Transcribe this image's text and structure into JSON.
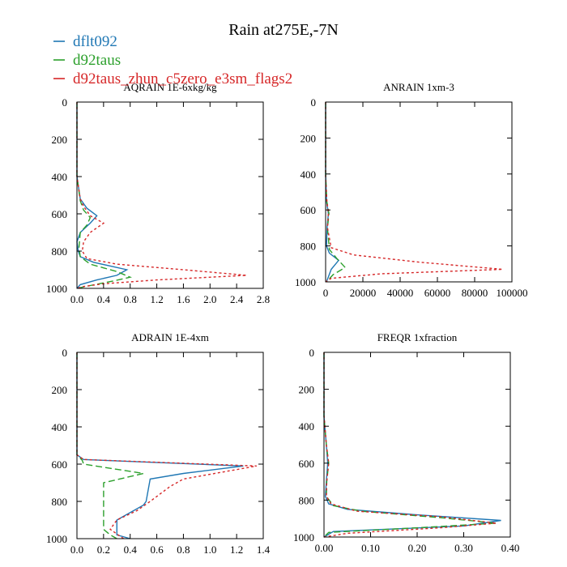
{
  "figure": {
    "title": "Rain at275E,-7N"
  },
  "colors": {
    "frame": "#000000",
    "series_1": "#1f77b4",
    "series_2": "#2ca02c",
    "series_3": "#d62728"
  },
  "chart_data": [
    {
      "type": "line",
      "title": "AQRAIN  1E-6xkg/kg",
      "xlabel": "",
      "ylabel": "",
      "xlim": [
        0,
        2.8
      ],
      "ylim": [
        1000,
        0
      ],
      "xticks": [
        0,
        0.4,
        0.8,
        1.2,
        1.6,
        2.0,
        2.4,
        2.8
      ],
      "xtick_labels": [
        "0.0",
        "0.4",
        "0.8",
        "1.2",
        "1.6",
        "2.0",
        "2.4",
        "2.8"
      ],
      "yticks": [
        0,
        200,
        400,
        600,
        800,
        1000
      ],
      "ytick_labels": [
        "0",
        "200",
        "400",
        "600",
        "800",
        "1000"
      ],
      "grid": false,
      "legend": "top-left",
      "series": [
        {
          "name": "dflt092",
          "color": "#1f77b4",
          "dash": "none",
          "x": [
            0,
            0,
            0.05,
            0.15,
            0.3,
            0.2,
            0.05,
            0,
            0.02,
            0.05,
            0.25,
            0.75,
            0.6,
            0.3,
            0.05,
            0
          ],
          "y": [
            0,
            400,
            520,
            570,
            610,
            650,
            700,
            750,
            800,
            830,
            860,
            900,
            930,
            955,
            980,
            1000
          ]
        },
        {
          "name": "d92taus",
          "color": "#2ca02c",
          "dash": "8,4",
          "x": [
            0,
            0,
            0.05,
            0.1,
            0.2,
            0.15,
            0.05,
            0.03,
            0.05,
            0.2,
            0.6,
            0.8,
            0.55,
            0.2,
            0
          ],
          "y": [
            0,
            400,
            530,
            580,
            620,
            660,
            700,
            780,
            830,
            870,
            910,
            940,
            960,
            985,
            1000
          ]
        },
        {
          "name": "d92taus_zhun_c5zero_e3sm_flags2",
          "color": "#d62728",
          "dash": "3,3",
          "x": [
            0,
            0,
            0.05,
            0.1,
            0.2,
            0.4,
            0.2,
            0.1,
            0.08,
            0.15,
            0.6,
            1.6,
            2.55,
            1.2,
            0.4,
            0.1,
            0
          ],
          "y": [
            0,
            400,
            520,
            560,
            610,
            650,
            700,
            750,
            800,
            840,
            870,
            900,
            930,
            955,
            975,
            990,
            1000
          ]
        }
      ]
    },
    {
      "type": "line",
      "title": "ANRAIN  1xm-3",
      "xlabel": "",
      "ylabel": "",
      "xlim": [
        0,
        100000
      ],
      "ylim": [
        1000,
        0
      ],
      "xticks": [
        0,
        20000,
        40000,
        60000,
        80000,
        100000
      ],
      "xtick_labels": [
        "0",
        "20000",
        "40000",
        "60000",
        "80000",
        "100000"
      ],
      "yticks": [
        0,
        200,
        400,
        600,
        800,
        1000
      ],
      "ytick_labels": [
        "0",
        "200",
        "400",
        "600",
        "800",
        "1000"
      ],
      "grid": false,
      "series": [
        {
          "name": "dflt092",
          "color": "#1f77b4",
          "dash": "none",
          "x": [
            0,
            0,
            500,
            1500,
            800,
            500,
            2000,
            7000,
            3000,
            500
          ],
          "y": [
            0,
            400,
            550,
            620,
            700,
            800,
            840,
            880,
            930,
            1000
          ]
        },
        {
          "name": "d92taus",
          "color": "#2ca02c",
          "dash": "8,4",
          "x": [
            0,
            0,
            600,
            1800,
            1000,
            2000,
            6000,
            10500,
            4000,
            500
          ],
          "y": [
            0,
            400,
            550,
            620,
            700,
            820,
            870,
            920,
            960,
            1000
          ]
        },
        {
          "name": "d92taus_zhun_c5zero_e3sm_flags2",
          "color": "#d62728",
          "dash": "3,3",
          "x": [
            0,
            0,
            700,
            1500,
            1000,
            3000,
            15000,
            50000,
            95000,
            30000,
            3000,
            0
          ],
          "y": [
            0,
            420,
            550,
            620,
            700,
            810,
            850,
            890,
            930,
            955,
            980,
            1000
          ]
        }
      ]
    },
    {
      "type": "line",
      "title": "ADRAIN  1E-4xm",
      "xlabel": "",
      "ylabel": "",
      "xlim": [
        0,
        1.4
      ],
      "ylim": [
        1000,
        0
      ],
      "xticks": [
        0,
        0.2,
        0.4,
        0.6,
        0.8,
        1.0,
        1.2,
        1.4
      ],
      "xtick_labels": [
        "0.0",
        "0.2",
        "0.4",
        "0.6",
        "0.8",
        "1.0",
        "1.2",
        "1.4"
      ],
      "yticks": [
        0,
        200,
        400,
        600,
        800,
        1000
      ],
      "ytick_labels": [
        "0",
        "200",
        "400",
        "600",
        "800",
        "1000"
      ],
      "grid": false,
      "series": [
        {
          "name": "dflt092",
          "color": "#1f77b4",
          "dash": "none",
          "x": [
            0,
            0,
            0.05,
            1.25,
            0.8,
            0.55,
            0.52,
            0.5,
            0.3,
            0.3,
            0.3,
            0.4
          ],
          "y": [
            0,
            550,
            575,
            610,
            650,
            680,
            800,
            820,
            900,
            950,
            980,
            1000
          ]
        },
        {
          "name": "d92taus",
          "color": "#2ca02c",
          "dash": "8,4",
          "x": [
            0,
            0,
            0.04,
            0.05,
            0.5,
            0.2,
            0.2,
            0.2,
            0.2,
            0.25,
            0.3
          ],
          "y": [
            0,
            550,
            580,
            600,
            650,
            700,
            800,
            900,
            950,
            980,
            1000
          ]
        },
        {
          "name": "d92taus_zhun_c5zero_e3sm_flags2",
          "color": "#d62728",
          "dash": "3,3",
          "x": [
            0,
            0,
            0.05,
            1.35,
            0.8,
            0.7,
            0.55,
            0.45,
            0.3,
            0.25,
            0.35
          ],
          "y": [
            0,
            550,
            575,
            610,
            680,
            720,
            800,
            850,
            900,
            950,
            1000
          ]
        }
      ]
    },
    {
      "type": "line",
      "title": "FREQR  1xfraction",
      "xlabel": "",
      "ylabel": "",
      "xlim": [
        0,
        0.4
      ],
      "ylim": [
        1000,
        0
      ],
      "xticks": [
        0,
        0.1,
        0.2,
        0.3,
        0.4
      ],
      "xtick_labels": [
        "0.00",
        "0.10",
        "0.20",
        "0.30",
        "0.40"
      ],
      "yticks": [
        0,
        200,
        400,
        600,
        800,
        1000
      ],
      "ytick_labels": [
        "0",
        "200",
        "400",
        "600",
        "800",
        "1000"
      ],
      "grid": false,
      "series": [
        {
          "name": "dflt092",
          "color": "#1f77b4",
          "dash": "none",
          "x": [
            0,
            0,
            0.005,
            0.008,
            0.005,
            0.003,
            0.01,
            0.05,
            0.2,
            0.38,
            0.3,
            0.02,
            0
          ],
          "y": [
            0,
            350,
            500,
            600,
            700,
            780,
            820,
            850,
            880,
            910,
            940,
            970,
            1000
          ]
        },
        {
          "name": "d92taus",
          "color": "#2ca02c",
          "dash": "8,4",
          "x": [
            0,
            0,
            0.005,
            0.01,
            0.006,
            0.005,
            0.02,
            0.08,
            0.25,
            0.37,
            0.2,
            0.01,
            0
          ],
          "y": [
            0,
            350,
            500,
            600,
            700,
            780,
            830,
            860,
            895,
            925,
            950,
            975,
            1000
          ]
        },
        {
          "name": "d92taus_zhun_c5zero_e3sm_flags2",
          "color": "#d62728",
          "dash": "3,3",
          "x": [
            0,
            0,
            0.005,
            0.01,
            0.006,
            0.005,
            0.015,
            0.07,
            0.25,
            0.37,
            0.25,
            0.05,
            0
          ],
          "y": [
            0,
            340,
            500,
            600,
            700,
            780,
            820,
            860,
            890,
            925,
            950,
            980,
            1000
          ]
        }
      ]
    }
  ]
}
